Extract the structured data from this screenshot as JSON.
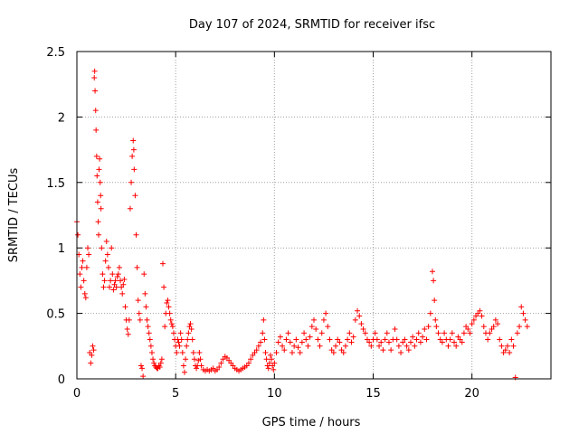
{
  "chart_data": {
    "type": "scatter",
    "title": "Day 107 of 2024, SRMTID for receiver ifsc",
    "xlabel": "GPS time / hours",
    "ylabel": "SRMTID / TECUs",
    "xlim": [
      0,
      24
    ],
    "ylim": [
      0,
      2.5
    ],
    "xticks": [
      0,
      5,
      10,
      15,
      20
    ],
    "xtick_labels": [
      "0",
      "5",
      "10",
      "15",
      "20"
    ],
    "yticks": [
      0,
      0.5,
      1,
      1.5,
      2,
      2.5
    ],
    "ytick_labels": [
      "0",
      "0.5",
      "1",
      "1.5",
      "2",
      "2.5"
    ],
    "grid": true,
    "marker": "+",
    "series": [
      {
        "name": "SRMTID",
        "color": "#ff0000",
        "points": [
          [
            0.0,
            1.2
          ],
          [
            0.05,
            1.1
          ],
          [
            0.1,
            0.95
          ],
          [
            0.15,
            0.8
          ],
          [
            0.2,
            0.7
          ],
          [
            0.25,
            0.85
          ],
          [
            0.3,
            0.9
          ],
          [
            0.35,
            0.75
          ],
          [
            0.4,
            0.65
          ],
          [
            0.45,
            0.62
          ],
          [
            0.5,
            0.85
          ],
          [
            0.55,
            1.0
          ],
          [
            0.6,
            0.95
          ],
          [
            0.65,
            0.2
          ],
          [
            0.7,
            0.12
          ],
          [
            0.75,
            0.18
          ],
          [
            0.8,
            0.25
          ],
          [
            0.85,
            0.22
          ],
          [
            0.88,
            2.3
          ],
          [
            0.9,
            2.35
          ],
          [
            0.92,
            2.2
          ],
          [
            0.95,
            2.05
          ],
          [
            0.97,
            1.9
          ],
          [
            1.0,
            1.7
          ],
          [
            1.02,
            1.55
          ],
          [
            1.05,
            1.35
          ],
          [
            1.08,
            1.2
          ],
          [
            1.1,
            1.1
          ],
          [
            1.12,
            1.6
          ],
          [
            1.15,
            1.68
          ],
          [
            1.18,
            1.5
          ],
          [
            1.2,
            1.4
          ],
          [
            1.22,
            1.3
          ],
          [
            1.25,
            1.0
          ],
          [
            1.3,
            0.8
          ],
          [
            1.35,
            0.7
          ],
          [
            1.4,
            0.75
          ],
          [
            1.45,
            0.9
          ],
          [
            1.5,
            1.05
          ],
          [
            1.55,
            0.95
          ],
          [
            1.6,
            0.85
          ],
          [
            1.65,
            0.7
          ],
          [
            1.7,
            0.75
          ],
          [
            1.75,
            1.0
          ],
          [
            1.8,
            0.8
          ],
          [
            1.85,
            0.68
          ],
          [
            1.9,
            0.72
          ],
          [
            1.95,
            0.75
          ],
          [
            2.0,
            0.7
          ],
          [
            2.05,
            0.78
          ],
          [
            2.1,
            0.8
          ],
          [
            2.15,
            0.85
          ],
          [
            2.2,
            0.75
          ],
          [
            2.25,
            0.7
          ],
          [
            2.3,
            0.65
          ],
          [
            2.35,
            0.72
          ],
          [
            2.4,
            0.76
          ],
          [
            2.45,
            0.55
          ],
          [
            2.5,
            0.45
          ],
          [
            2.55,
            0.38
          ],
          [
            2.6,
            0.34
          ],
          [
            2.65,
            0.45
          ],
          [
            2.7,
            1.3
          ],
          [
            2.75,
            1.5
          ],
          [
            2.8,
            1.7
          ],
          [
            2.85,
            1.82
          ],
          [
            2.88,
            1.75
          ],
          [
            2.9,
            1.6
          ],
          [
            2.95,
            1.4
          ],
          [
            3.0,
            1.1
          ],
          [
            3.05,
            0.85
          ],
          [
            3.1,
            0.6
          ],
          [
            3.15,
            0.5
          ],
          [
            3.2,
            0.45
          ],
          [
            3.25,
            0.1
          ],
          [
            3.3,
            0.08
          ],
          [
            3.35,
            0.02
          ],
          [
            3.4,
            0.8
          ],
          [
            3.45,
            0.65
          ],
          [
            3.5,
            0.55
          ],
          [
            3.55,
            0.45
          ],
          [
            3.6,
            0.4
          ],
          [
            3.65,
            0.35
          ],
          [
            3.7,
            0.3
          ],
          [
            3.75,
            0.25
          ],
          [
            3.8,
            0.2
          ],
          [
            3.85,
            0.15
          ],
          [
            3.9,
            0.12
          ],
          [
            3.95,
            0.1
          ],
          [
            4.0,
            0.09
          ],
          [
            4.05,
            0.08
          ],
          [
            4.1,
            0.08
          ],
          [
            4.15,
            0.1
          ],
          [
            4.2,
            0.09
          ],
          [
            4.25,
            0.12
          ],
          [
            4.3,
            0.15
          ],
          [
            4.35,
            0.88
          ],
          [
            4.4,
            0.7
          ],
          [
            4.45,
            0.4
          ],
          [
            4.5,
            0.5
          ],
          [
            4.55,
            0.58
          ],
          [
            4.6,
            0.6
          ],
          [
            4.65,
            0.55
          ],
          [
            4.7,
            0.5
          ],
          [
            4.75,
            0.45
          ],
          [
            4.8,
            0.42
          ],
          [
            4.85,
            0.4
          ],
          [
            4.9,
            0.35
          ],
          [
            4.95,
            0.3
          ],
          [
            5.0,
            0.25
          ],
          [
            5.05,
            0.2
          ],
          [
            5.1,
            0.3
          ],
          [
            5.15,
            0.28
          ],
          [
            5.2,
            0.25
          ],
          [
            5.25,
            0.35
          ],
          [
            5.3,
            0.3
          ],
          [
            5.35,
            0.2
          ],
          [
            5.4,
            0.1
          ],
          [
            5.45,
            0.05
          ],
          [
            5.5,
            0.15
          ],
          [
            5.55,
            0.25
          ],
          [
            5.6,
            0.3
          ],
          [
            5.65,
            0.35
          ],
          [
            5.7,
            0.4
          ],
          [
            5.75,
            0.42
          ],
          [
            5.8,
            0.38
          ],
          [
            5.85,
            0.3
          ],
          [
            5.9,
            0.2
          ],
          [
            5.95,
            0.15
          ],
          [
            6.0,
            0.1
          ],
          [
            6.05,
            0.08
          ],
          [
            6.1,
            0.1
          ],
          [
            6.15,
            0.14
          ],
          [
            6.2,
            0.2
          ],
          [
            6.25,
            0.15
          ],
          [
            6.3,
            0.1
          ],
          [
            6.4,
            0.07
          ],
          [
            6.5,
            0.06
          ],
          [
            6.6,
            0.07
          ],
          [
            6.7,
            0.06
          ],
          [
            6.8,
            0.07
          ],
          [
            6.9,
            0.08
          ],
          [
            7.0,
            0.06
          ],
          [
            7.1,
            0.07
          ],
          [
            7.2,
            0.09
          ],
          [
            7.3,
            0.12
          ],
          [
            7.4,
            0.15
          ],
          [
            7.5,
            0.17
          ],
          [
            7.6,
            0.16
          ],
          [
            7.7,
            0.14
          ],
          [
            7.8,
            0.12
          ],
          [
            7.9,
            0.1
          ],
          [
            8.0,
            0.08
          ],
          [
            8.1,
            0.07
          ],
          [
            8.2,
            0.06
          ],
          [
            8.3,
            0.07
          ],
          [
            8.4,
            0.08
          ],
          [
            8.5,
            0.09
          ],
          [
            8.6,
            0.1
          ],
          [
            8.7,
            0.12
          ],
          [
            8.8,
            0.15
          ],
          [
            8.9,
            0.18
          ],
          [
            9.0,
            0.2
          ],
          [
            9.1,
            0.22
          ],
          [
            9.2,
            0.25
          ],
          [
            9.3,
            0.28
          ],
          [
            9.4,
            0.35
          ],
          [
            9.45,
            0.45
          ],
          [
            9.5,
            0.3
          ],
          [
            9.55,
            0.2
          ],
          [
            9.6,
            0.15
          ],
          [
            9.65,
            0.1
          ],
          [
            9.7,
            0.08
          ],
          [
            9.75,
            0.12
          ],
          [
            9.8,
            0.18
          ],
          [
            9.85,
            0.15
          ],
          [
            9.9,
            0.1
          ],
          [
            9.95,
            0.07
          ],
          [
            10.0,
            0.12
          ],
          [
            10.1,
            0.2
          ],
          [
            10.2,
            0.28
          ],
          [
            10.3,
            0.32
          ],
          [
            10.4,
            0.25
          ],
          [
            10.5,
            0.22
          ],
          [
            10.6,
            0.3
          ],
          [
            10.7,
            0.35
          ],
          [
            10.8,
            0.28
          ],
          [
            10.9,
            0.2
          ],
          [
            11.0,
            0.25
          ],
          [
            11.1,
            0.3
          ],
          [
            11.2,
            0.24
          ],
          [
            11.3,
            0.2
          ],
          [
            11.4,
            0.28
          ],
          [
            11.5,
            0.35
          ],
          [
            11.6,
            0.3
          ],
          [
            11.7,
            0.25
          ],
          [
            11.8,
            0.32
          ],
          [
            11.9,
            0.4
          ],
          [
            12.0,
            0.45
          ],
          [
            12.1,
            0.38
          ],
          [
            12.2,
            0.3
          ],
          [
            12.3,
            0.25
          ],
          [
            12.4,
            0.35
          ],
          [
            12.5,
            0.45
          ],
          [
            12.6,
            0.5
          ],
          [
            12.7,
            0.4
          ],
          [
            12.8,
            0.3
          ],
          [
            12.9,
            0.22
          ],
          [
            13.0,
            0.2
          ],
          [
            13.1,
            0.25
          ],
          [
            13.2,
            0.3
          ],
          [
            13.3,
            0.28
          ],
          [
            13.4,
            0.22
          ],
          [
            13.5,
            0.2
          ],
          [
            13.6,
            0.25
          ],
          [
            13.7,
            0.3
          ],
          [
            13.8,
            0.35
          ],
          [
            13.9,
            0.28
          ],
          [
            14.0,
            0.32
          ],
          [
            14.1,
            0.45
          ],
          [
            14.2,
            0.52
          ],
          [
            14.3,
            0.48
          ],
          [
            14.4,
            0.42
          ],
          [
            14.5,
            0.38
          ],
          [
            14.6,
            0.35
          ],
          [
            14.7,
            0.3
          ],
          [
            14.8,
            0.28
          ],
          [
            14.9,
            0.25
          ],
          [
            15.0,
            0.3
          ],
          [
            15.1,
            0.35
          ],
          [
            15.2,
            0.3
          ],
          [
            15.3,
            0.25
          ],
          [
            15.4,
            0.28
          ],
          [
            15.5,
            0.22
          ],
          [
            15.6,
            0.3
          ],
          [
            15.7,
            0.35
          ],
          [
            15.8,
            0.28
          ],
          [
            15.9,
            0.22
          ],
          [
            16.0,
            0.3
          ],
          [
            16.1,
            0.38
          ],
          [
            16.2,
            0.3
          ],
          [
            16.3,
            0.25
          ],
          [
            16.4,
            0.2
          ],
          [
            16.5,
            0.28
          ],
          [
            16.6,
            0.3
          ],
          [
            16.7,
            0.25
          ],
          [
            16.8,
            0.22
          ],
          [
            16.9,
            0.28
          ],
          [
            17.0,
            0.32
          ],
          [
            17.1,
            0.25
          ],
          [
            17.2,
            0.3
          ],
          [
            17.3,
            0.35
          ],
          [
            17.4,
            0.28
          ],
          [
            17.5,
            0.32
          ],
          [
            17.6,
            0.38
          ],
          [
            17.7,
            0.3
          ],
          [
            17.8,
            0.4
          ],
          [
            17.9,
            0.5
          ],
          [
            18.0,
            0.82
          ],
          [
            18.05,
            0.75
          ],
          [
            18.1,
            0.6
          ],
          [
            18.15,
            0.45
          ],
          [
            18.2,
            0.4
          ],
          [
            18.3,
            0.35
          ],
          [
            18.4,
            0.3
          ],
          [
            18.5,
            0.28
          ],
          [
            18.6,
            0.35
          ],
          [
            18.7,
            0.3
          ],
          [
            18.8,
            0.25
          ],
          [
            18.9,
            0.3
          ],
          [
            19.0,
            0.35
          ],
          [
            19.1,
            0.28
          ],
          [
            19.2,
            0.25
          ],
          [
            19.3,
            0.32
          ],
          [
            19.4,
            0.3
          ],
          [
            19.5,
            0.28
          ],
          [
            19.6,
            0.35
          ],
          [
            19.7,
            0.4
          ],
          [
            19.8,
            0.38
          ],
          [
            19.9,
            0.35
          ],
          [
            20.0,
            0.42
          ],
          [
            20.1,
            0.45
          ],
          [
            20.2,
            0.48
          ],
          [
            20.3,
            0.5
          ],
          [
            20.4,
            0.52
          ],
          [
            20.5,
            0.48
          ],
          [
            20.6,
            0.4
          ],
          [
            20.7,
            0.35
          ],
          [
            20.8,
            0.3
          ],
          [
            20.9,
            0.35
          ],
          [
            21.0,
            0.38
          ],
          [
            21.1,
            0.4
          ],
          [
            21.2,
            0.45
          ],
          [
            21.3,
            0.42
          ],
          [
            21.4,
            0.3
          ],
          [
            21.5,
            0.25
          ],
          [
            21.6,
            0.2
          ],
          [
            21.7,
            0.22
          ],
          [
            21.8,
            0.25
          ],
          [
            21.9,
            0.2
          ],
          [
            22.0,
            0.3
          ],
          [
            22.1,
            0.25
          ],
          [
            22.2,
            0.01
          ],
          [
            22.3,
            0.35
          ],
          [
            22.4,
            0.4
          ],
          [
            22.5,
            0.55
          ],
          [
            22.6,
            0.5
          ],
          [
            22.7,
            0.45
          ],
          [
            22.8,
            0.4
          ]
        ]
      }
    ]
  }
}
